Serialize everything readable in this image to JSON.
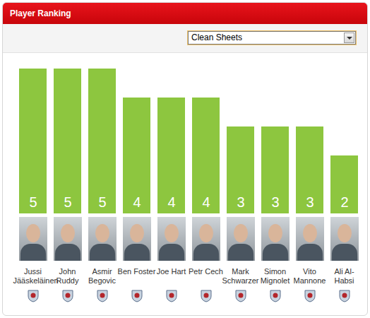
{
  "chart_data": {
    "type": "bar",
    "title": "Player Ranking",
    "subtitle": "Clean Sheets",
    "categories": [
      "Jussi Jääskeläinen",
      "John Ruddy",
      "Asmir Begovic",
      "Ben Foster",
      "Joe Hart",
      "Petr Cech",
      "Mark Schwarzer",
      "Simon Mignolet",
      "Vito Mannone",
      "Ali Al-Habsi"
    ],
    "values": [
      5,
      5,
      5,
      4,
      4,
      4,
      3,
      3,
      3,
      2
    ],
    "color": "#8dc63f",
    "ylim": [
      0,
      5
    ],
    "data_labels": true,
    "tick_labels": false
  }
}
